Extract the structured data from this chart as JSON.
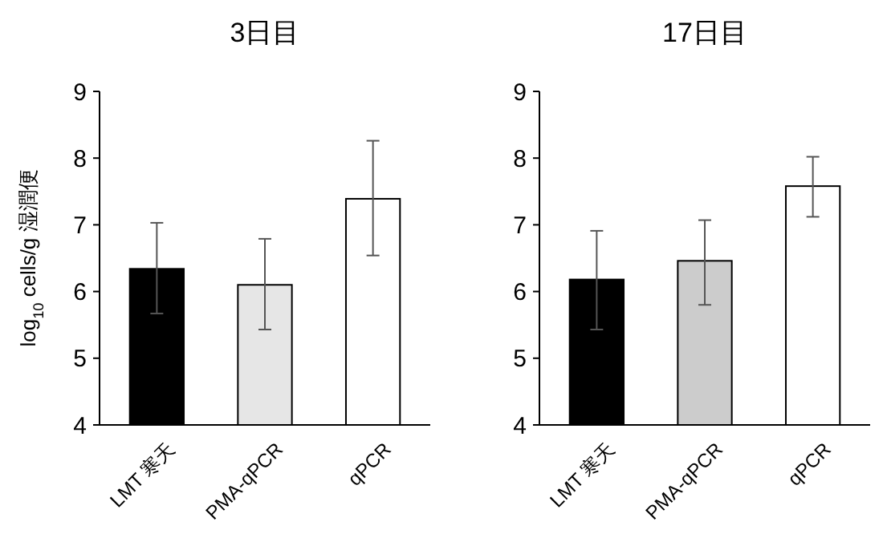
{
  "chart_data": [
    {
      "type": "bar",
      "title": "3日目",
      "ylabel": "log$_{10}$ cells/g 湿潤便",
      "categories": [
        "LMT 寒天",
        "PMA-qPCR",
        "qPCR"
      ],
      "values": [
        6.34,
        6.1,
        7.39
      ],
      "colors": [
        "#000000",
        "#e6e6e6",
        "#ffffff"
      ],
      "errors": [
        [
          5.67,
          7.03
        ],
        [
          5.43,
          6.79
        ],
        [
          6.54,
          8.26
        ]
      ],
      "ylim": [
        4,
        9
      ],
      "yticks": [
        4,
        5,
        6,
        7,
        8,
        9
      ]
    },
    {
      "type": "bar",
      "title": "17日目",
      "categories": [
        "LMT 寒天",
        "PMA-qPCR",
        "qPCR"
      ],
      "values": [
        6.18,
        6.46,
        7.58
      ],
      "colors": [
        "#000000",
        "#cccccc",
        "#ffffff"
      ],
      "errors": [
        [
          5.43,
          6.91
        ],
        [
          5.8,
          7.07
        ],
        [
          7.12,
          8.02
        ]
      ],
      "ylim": [
        4,
        9
      ],
      "yticks": [
        4,
        5,
        6,
        7,
        8,
        9
      ]
    }
  ]
}
